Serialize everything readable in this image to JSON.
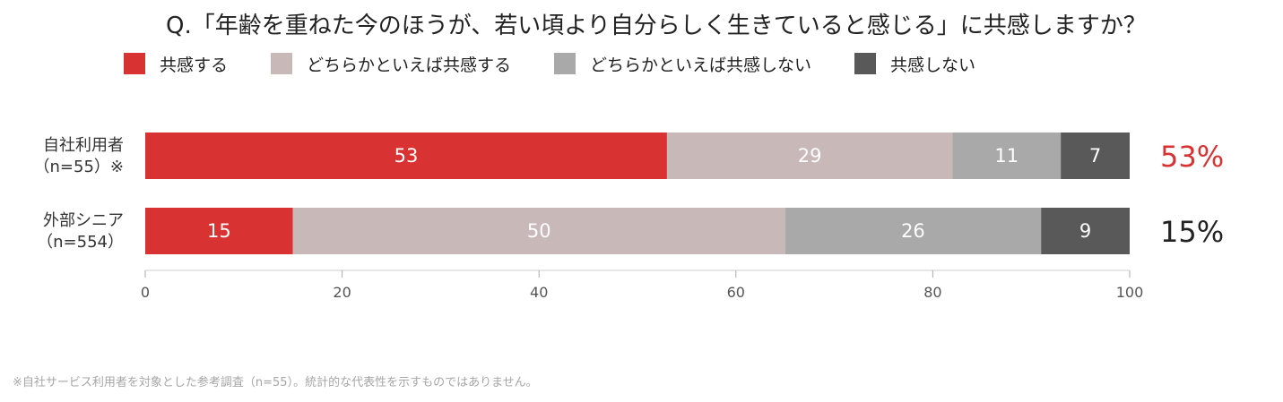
{
  "title": "Q.「年齢を重ねた今のほうが、若い頃より自分らしく生きていると感じる」に共感しますか？",
  "footnote": "※自社サービス利用者を対象とした参考調査（n=55）。統計的な代表性を示すものではありません。",
  "colors": {
    "agree": "#d93232",
    "somewhat_agree": "#c9b8b8",
    "somewhat_disagree": "#a9a9a9",
    "disagree": "#595959",
    "highlight_red": "#d93232",
    "text_dark": "#222222",
    "axis": "#cccccc",
    "tick_text": "#555555",
    "footnote": "#a6a6a6"
  },
  "chart_data": {
    "type": "bar",
    "orientation": "horizontal",
    "stacked": true,
    "title": "Q.「年齢を重ねた今のほうが、若い頃より自分らしく生きていると感じる」に共感しますか？",
    "categories": [
      {
        "line1": "自社利用者",
        "line2": "（n=55）※"
      },
      {
        "line1": "外部シニア",
        "line2": "（n=554）"
      }
    ],
    "series": [
      {
        "name": "共感する",
        "color": "#d93232",
        "values": [
          53,
          15
        ]
      },
      {
        "name": "どちらかといえば共感する",
        "color": "#c9b8b8",
        "values": [
          29,
          50
        ]
      },
      {
        "name": "どちらかといえば共感しない",
        "color": "#a9a9a9",
        "values": [
          11,
          26
        ]
      },
      {
        "name": "共感しない",
        "color": "#595959",
        "values": [
          7,
          9
        ]
      }
    ],
    "totals": [
      {
        "label": "53%",
        "color": "#d93232"
      },
      {
        "label": "15%",
        "color": "#222222"
      }
    ],
    "xlim": [
      0,
      100
    ],
    "xticks": [
      0,
      20,
      40,
      60,
      80,
      100
    ],
    "legend_position": "top-left",
    "grid": false,
    "xlabel": "",
    "ylabel": ""
  }
}
